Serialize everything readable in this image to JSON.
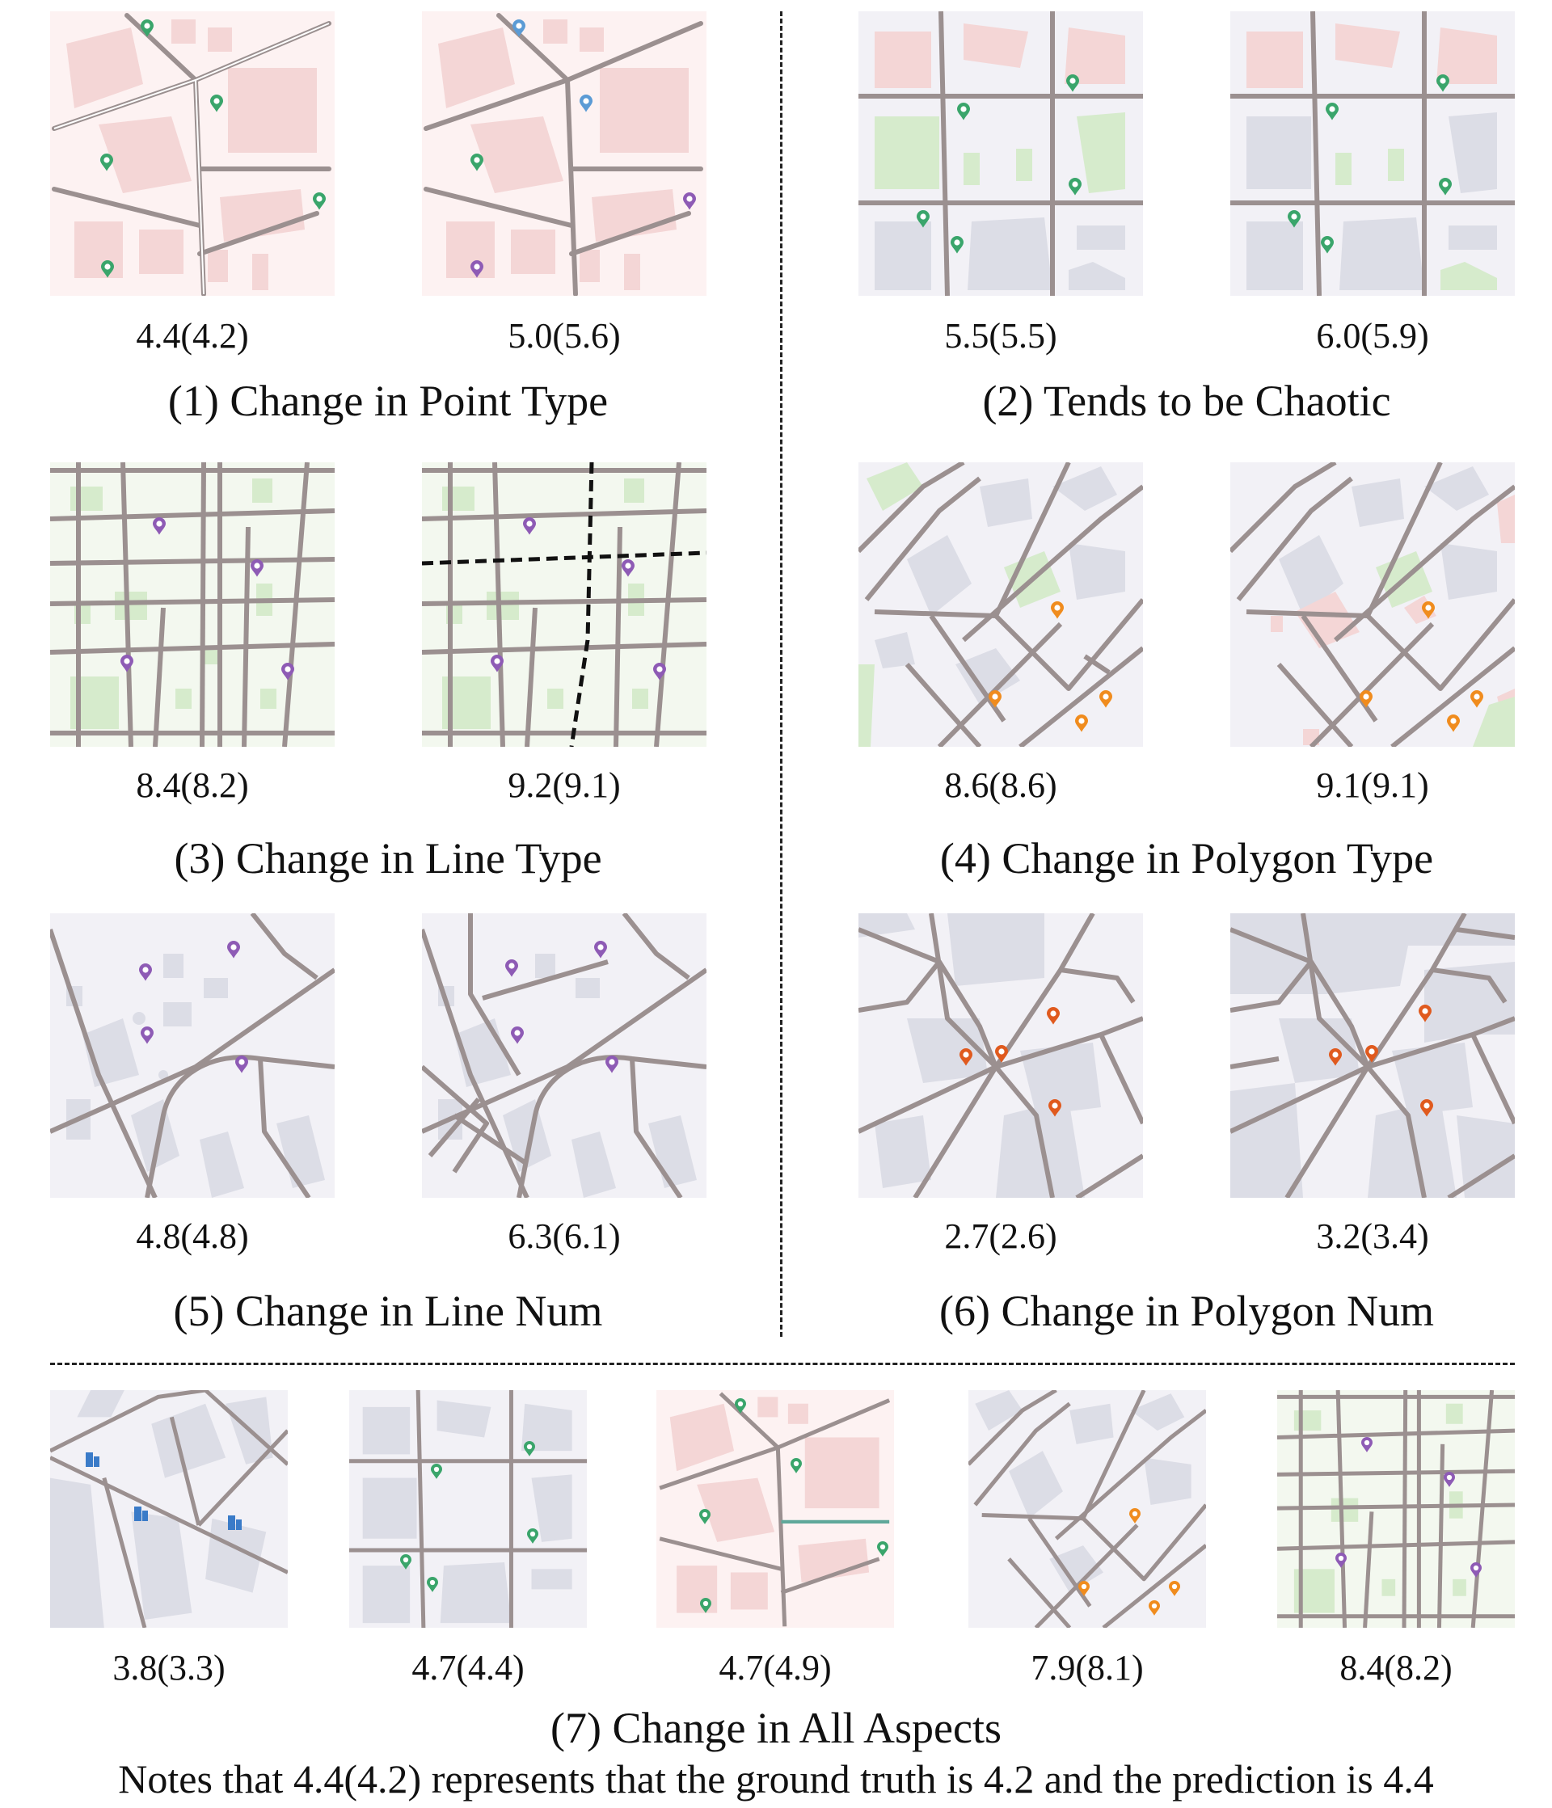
{
  "panels": [
    {
      "caption": "(1) Change in Point Type",
      "scores": [
        "4.4(4.2)",
        "5.0(5.6)"
      ]
    },
    {
      "caption": "(2) Tends to be Chaotic",
      "scores": [
        "5.5(5.5)",
        "6.0(5.9)"
      ]
    },
    {
      "caption": "(3) Change in Line Type",
      "scores": [
        "8.4(8.2)",
        "9.2(9.1)"
      ]
    },
    {
      "caption": "(4) Change in Polygon Type",
      "scores": [
        "8.6(8.6)",
        "9.1(9.1)"
      ]
    },
    {
      "caption": "(5) Change in Line Num",
      "scores": [
        "4.8(4.8)",
        "6.3(6.1)"
      ]
    },
    {
      "caption": "(6) Change in Polygon Num",
      "scores": [
        "2.7(2.6)",
        "3.2(3.4)"
      ]
    }
  ],
  "bottom": {
    "caption": "(7) Change in All Aspects",
    "scores": [
      "3.8(3.3)",
      "4.7(4.4)",
      "4.7(4.9)",
      "7.9(8.1)",
      "8.4(8.2)"
    ]
  },
  "note": "Notes that 4.4(4.2) represents that the ground truth is 4.2 and the prediction is 4.4",
  "colors": {
    "pink_bg": "#fdf2f2",
    "pink_block": "#f4d6d6",
    "gray_bg": "#f2f1f6",
    "gray_block": "#dcdde6",
    "green_bg": "#f3f8ef",
    "green_block": "#d6ebcc",
    "road": "#9b9090",
    "poi_green": "#3aa56b",
    "poi_blue": "#5b9bd5",
    "poi_purple": "#8e5bb5",
    "poi_orange": "#f08c1e",
    "poi_red_orange": "#e05a1e",
    "poi_building": "#3a7bc8"
  }
}
